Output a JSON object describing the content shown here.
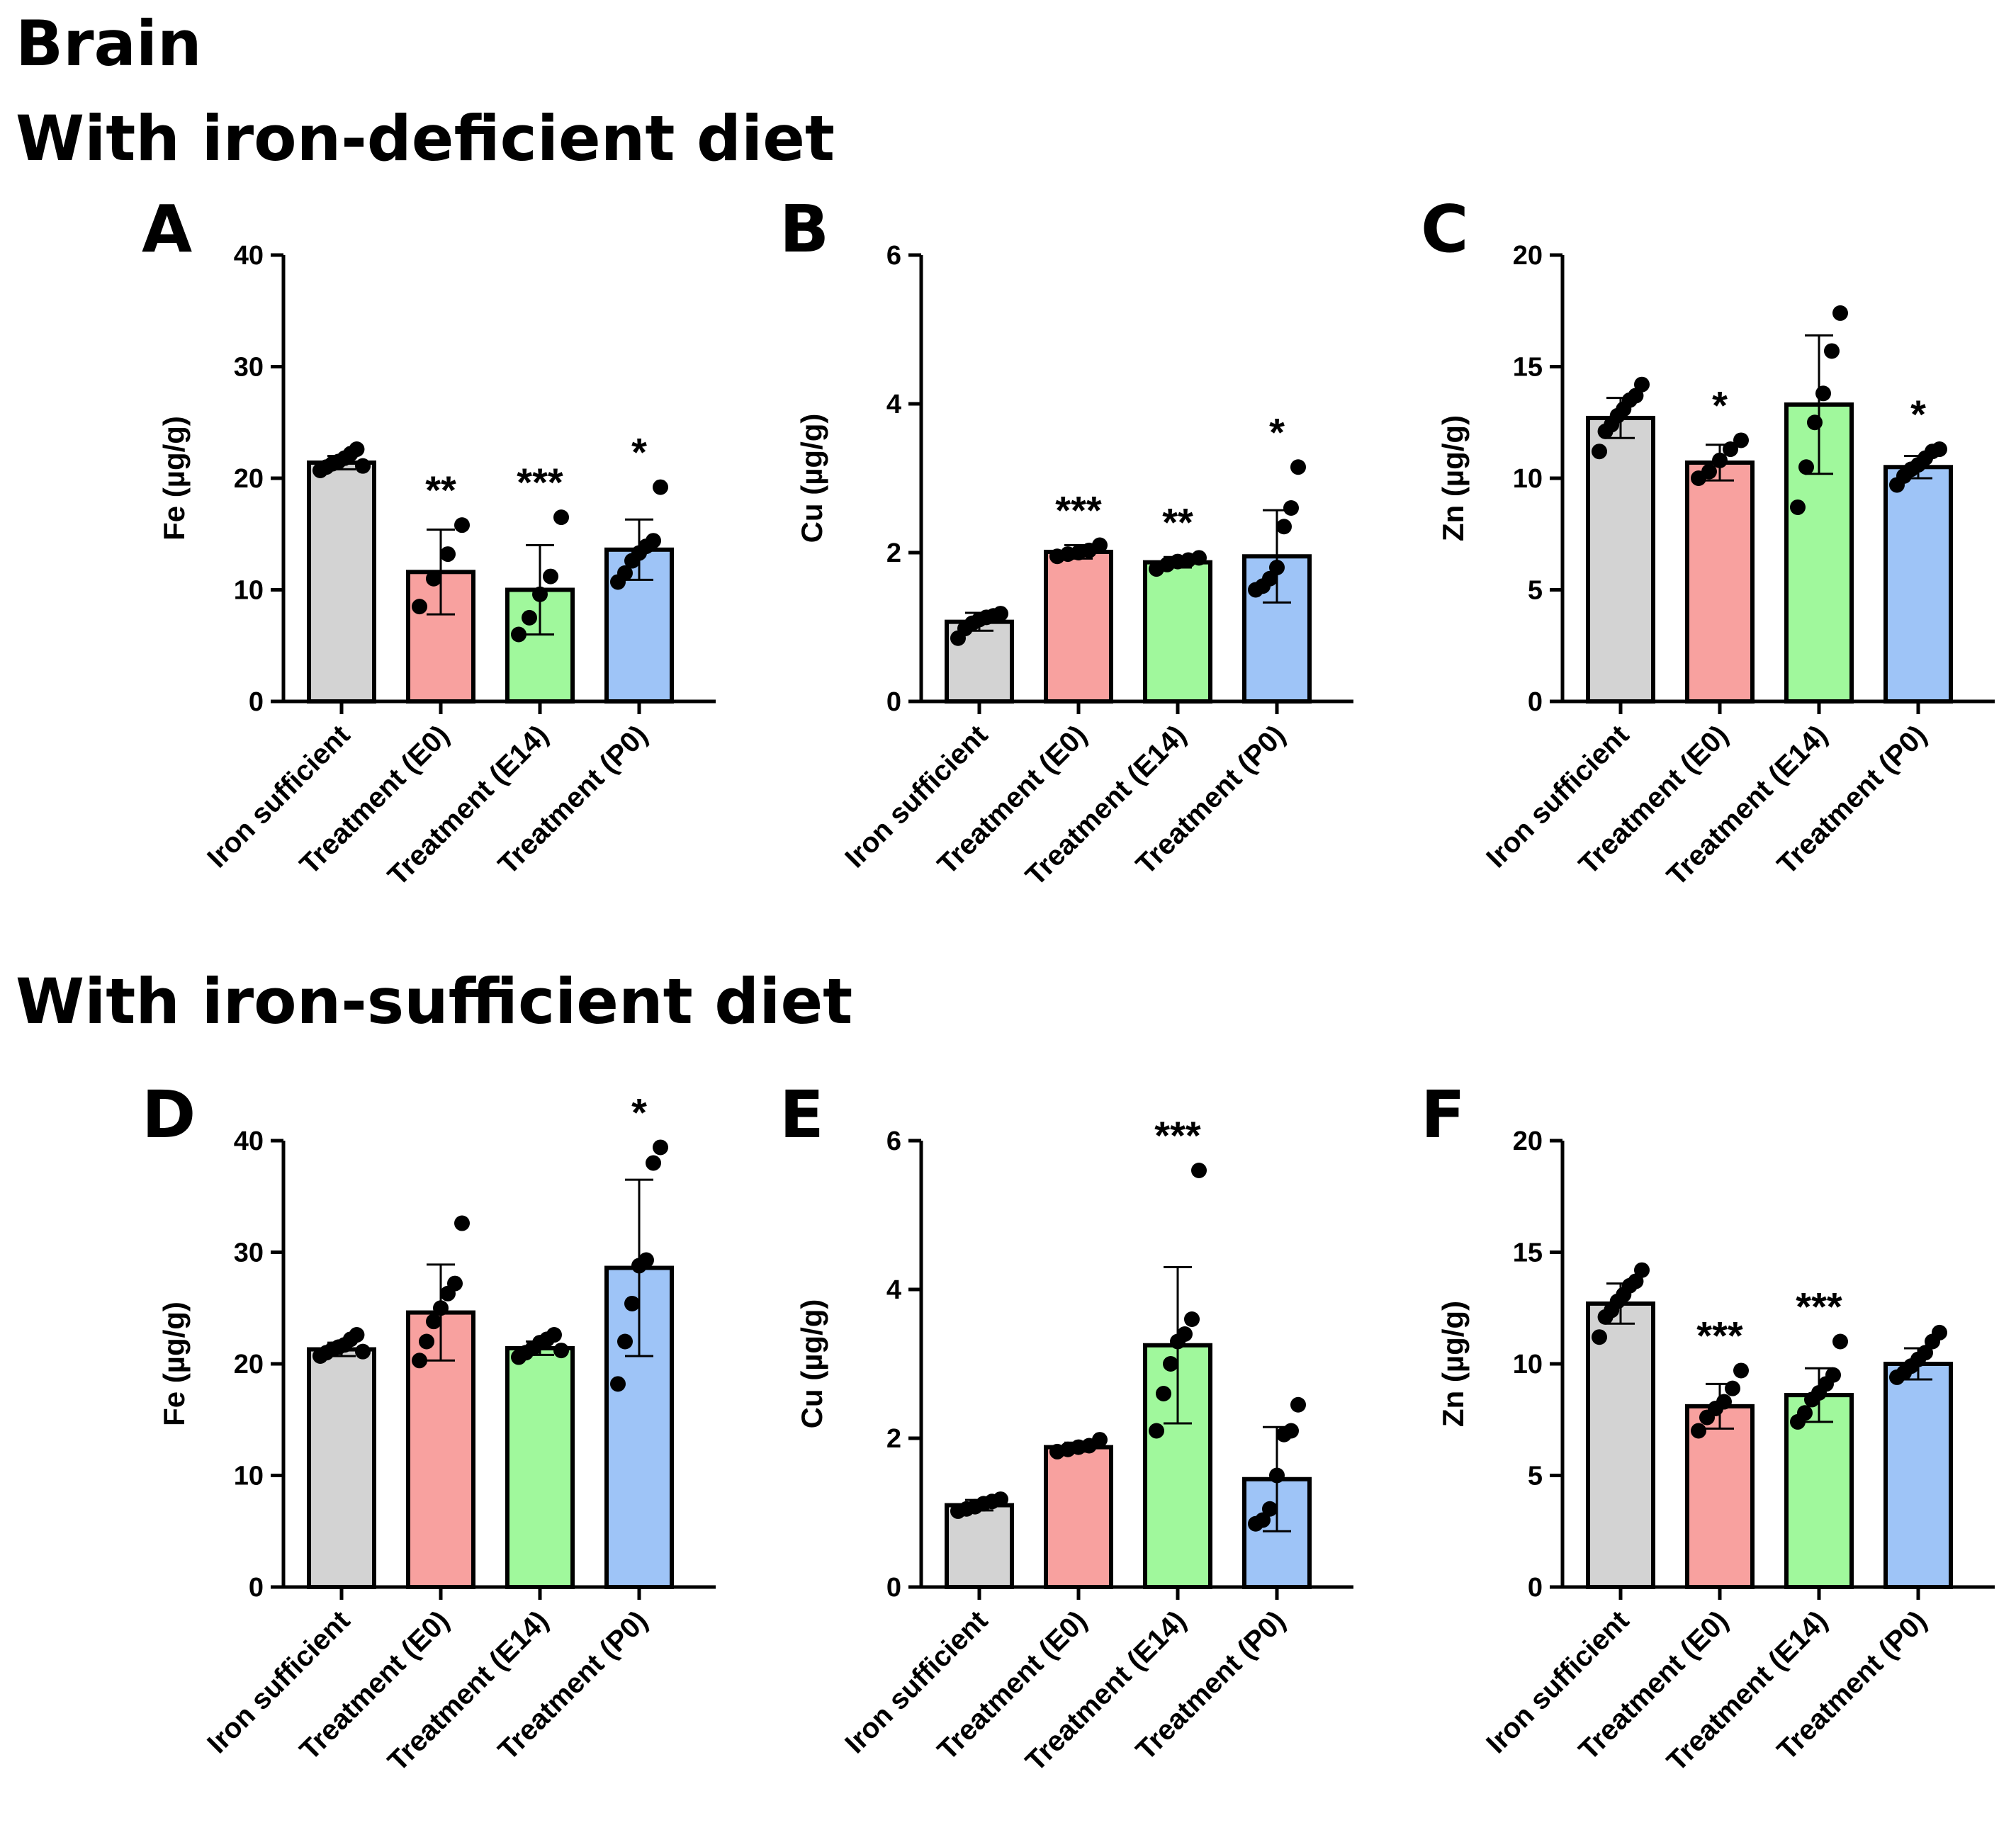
{
  "headings": {
    "main": "Brain",
    "top": "With iron-deficient diet",
    "bottom": "With iron-sufficient diet"
  },
  "colors": {
    "Iron sufficient": "#d3d3d3",
    "Treatment (E0)": "#f8a19f",
    "Treatment (E14)": "#a0f89c",
    "Treatment (P0)": "#9ec4f7"
  },
  "chart_data": [
    {
      "panel": "A",
      "type": "bar",
      "ylabel": "Fe (µg/g)",
      "ylim": [
        0,
        40
      ],
      "yticks": [
        0,
        10,
        20,
        30,
        40
      ],
      "categories": [
        "Iron sufficient",
        "Treatment (E0)",
        "Treatment (E14)",
        "Treatment (P0)"
      ],
      "values": [
        21.4,
        11.6,
        10.0,
        13.6
      ],
      "sd": [
        0.6,
        3.8,
        4.0,
        2.7
      ],
      "significance": [
        "",
        "**",
        "***",
        "*"
      ],
      "points": [
        [
          20.7,
          21.0,
          21.3,
          21.5,
          21.8,
          22.2,
          22.6,
          21.1
        ],
        [
          8.5,
          11.0,
          13.2,
          15.8
        ],
        [
          6.0,
          7.5,
          9.6,
          11.2,
          16.5
        ],
        [
          10.7,
          11.5,
          12.6,
          13.3,
          13.9,
          14.4,
          19.2
        ]
      ]
    },
    {
      "panel": "B",
      "type": "bar",
      "ylabel": "Cu (µg/g)",
      "ylim": [
        0,
        6
      ],
      "yticks": [
        0,
        2,
        4,
        6
      ],
      "categories": [
        "Iron sufficient",
        "Treatment (E0)",
        "Treatment (E14)",
        "Treatment (P0)"
      ],
      "values": [
        1.07,
        2.01,
        1.87,
        1.95
      ],
      "sd": [
        0.12,
        0.09,
        0.07,
        0.62
      ],
      "significance": [
        "",
        "***",
        "**",
        "*"
      ],
      "points": [
        [
          0.85,
          0.98,
          1.05,
          1.1,
          1.13,
          1.15,
          1.18
        ],
        [
          1.95,
          1.98,
          2.0,
          2.03,
          2.1
        ],
        [
          1.78,
          1.84,
          1.88,
          1.9,
          1.93
        ],
        [
          1.5,
          1.55,
          1.65,
          1.8,
          2.35,
          2.6,
          3.15
        ]
      ]
    },
    {
      "panel": "C",
      "type": "bar",
      "ylabel": "Zn (µg/g)",
      "ylim": [
        0,
        20
      ],
      "yticks": [
        0,
        5,
        10,
        15,
        20
      ],
      "categories": [
        "Iron sufficient",
        "Treatment (E0)",
        "Treatment (E14)",
        "Treatment (P0)"
      ],
      "values": [
        12.7,
        10.7,
        13.3,
        10.5
      ],
      "sd": [
        0.9,
        0.8,
        3.1,
        0.5
      ],
      "significance": [
        "",
        "*",
        "",
        "*"
      ],
      "points": [
        [
          11.2,
          12.1,
          12.4,
          12.8,
          13.1,
          13.5,
          13.7,
          14.2
        ],
        [
          10.0,
          10.3,
          10.8,
          11.3,
          11.7
        ],
        [
          8.7,
          10.5,
          12.5,
          13.8,
          15.7,
          17.4
        ],
        [
          9.7,
          10.1,
          10.4,
          10.6,
          10.9,
          11.2,
          11.3
        ]
      ]
    },
    {
      "panel": "D",
      "type": "bar",
      "ylabel": "Fe (µg/g)",
      "ylim": [
        0,
        40
      ],
      "yticks": [
        0,
        10,
        20,
        30,
        40
      ],
      "categories": [
        "Iron sufficient",
        "Treatment (E0)",
        "Treatment (E14)",
        "Treatment (P0)"
      ],
      "values": [
        21.3,
        24.6,
        21.4,
        28.6
      ],
      "sd": [
        0.6,
        4.3,
        0.6,
        7.9
      ],
      "significance": [
        "",
        "",
        "",
        "*"
      ],
      "points": [
        [
          20.7,
          21.0,
          21.3,
          21.5,
          21.7,
          22.2,
          22.6,
          21.1
        ],
        [
          20.3,
          22.0,
          23.8,
          25.0,
          26.3,
          27.2,
          32.6
        ],
        [
          20.6,
          21.0,
          21.4,
          21.9,
          22.2,
          22.6,
          21.2
        ],
        [
          18.2,
          22.0,
          25.4,
          28.8,
          29.3,
          38.0,
          39.4
        ]
      ]
    },
    {
      "panel": "E",
      "type": "bar",
      "ylabel": "Cu (µg/g)",
      "ylim": [
        0,
        6
      ],
      "yticks": [
        0,
        2,
        4,
        6
      ],
      "categories": [
        "Iron sufficient",
        "Treatment (E0)",
        "Treatment (E14)",
        "Treatment (P0)"
      ],
      "values": [
        1.1,
        1.88,
        3.25,
        1.45
      ],
      "sd": [
        0.07,
        0.06,
        1.05,
        0.7
      ],
      "significance": [
        "",
        "",
        "***",
        ""
      ],
      "points": [
        [
          1.02,
          1.05,
          1.08,
          1.12,
          1.15,
          1.18
        ],
        [
          1.82,
          1.85,
          1.88,
          1.9,
          1.98
        ],
        [
          2.1,
          2.6,
          3.0,
          3.3,
          3.4,
          3.6,
          5.6
        ],
        [
          0.85,
          0.9,
          1.05,
          1.5,
          2.05,
          2.1,
          2.45
        ]
      ]
    },
    {
      "panel": "F",
      "type": "bar",
      "ylabel": "Zn (µg/g)",
      "ylim": [
        0,
        20
      ],
      "yticks": [
        0,
        5,
        10,
        15,
        20
      ],
      "categories": [
        "Iron sufficient",
        "Treatment (E0)",
        "Treatment (E14)",
        "Treatment (P0)"
      ],
      "values": [
        12.7,
        8.1,
        8.6,
        10.0
      ],
      "sd": [
        0.9,
        1.0,
        1.2,
        0.7
      ],
      "significance": [
        "",
        "***",
        "***",
        ""
      ],
      "points": [
        [
          11.2,
          12.1,
          12.4,
          12.8,
          13.1,
          13.5,
          13.7,
          14.2
        ],
        [
          7.0,
          7.6,
          8.0,
          8.3,
          8.9,
          9.7
        ],
        [
          7.4,
          7.8,
          8.4,
          8.7,
          9.1,
          9.5,
          11.0
        ],
        [
          9.4,
          9.6,
          9.9,
          10.2,
          10.5,
          11.0,
          11.4
        ]
      ]
    }
  ]
}
